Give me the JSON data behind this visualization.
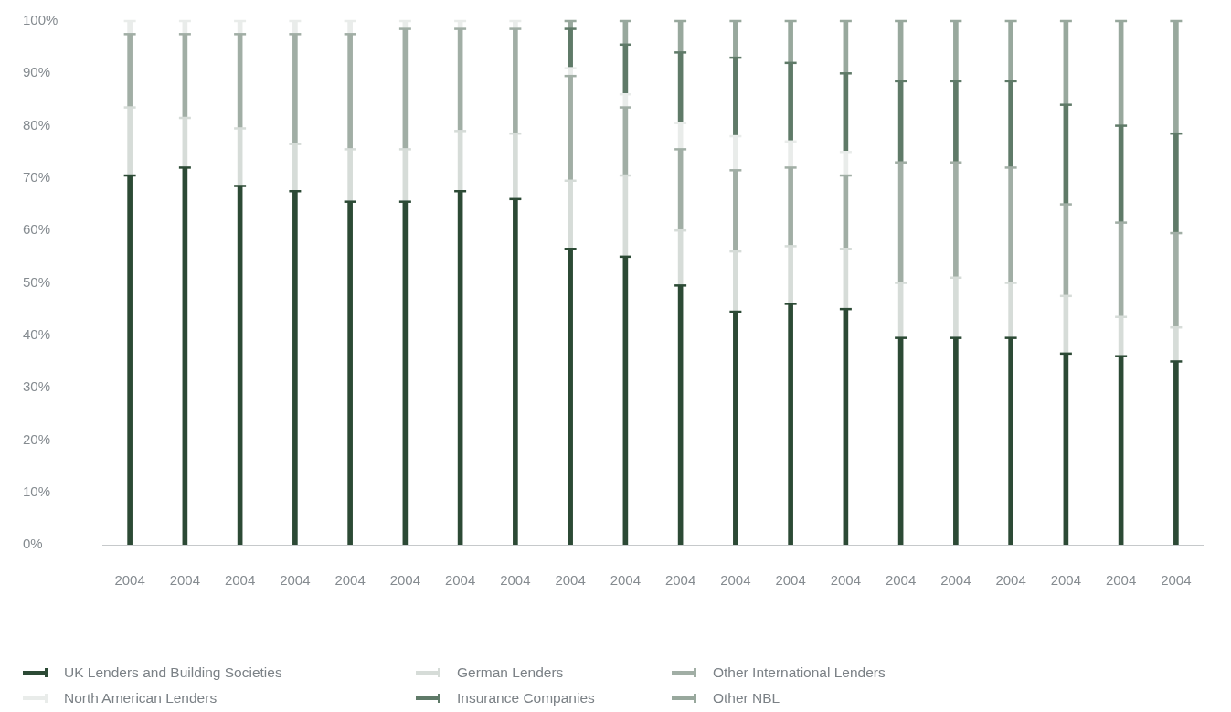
{
  "chart_data": {
    "type": "bar",
    "stacked": true,
    "legend": "bottom",
    "categories": [
      "2004",
      "2004",
      "2004",
      "2004",
      "2004",
      "2004",
      "2004",
      "2004",
      "2004",
      "2004",
      "2004",
      "2004",
      "2004",
      "2004",
      "2004",
      "2004",
      "2004",
      "2004",
      "2004",
      "2004"
    ],
    "ylim": [
      0,
      100
    ],
    "yticks": [
      {
        "value": 0,
        "label": "0%"
      },
      {
        "value": 10,
        "label": "10%"
      },
      {
        "value": 20,
        "label": "20%"
      },
      {
        "value": 30,
        "label": "30%"
      },
      {
        "value": 40,
        "label": "40%"
      },
      {
        "value": 50,
        "label": "50%"
      },
      {
        "value": 60,
        "label": "60%"
      },
      {
        "value": 70,
        "label": "70%"
      },
      {
        "value": 80,
        "label": "80%"
      },
      {
        "value": 90,
        "label": "90%"
      },
      {
        "value": 100,
        "label": "100%"
      }
    ],
    "series": [
      {
        "name": "UK Lenders and Building Societies",
        "color": "#2c4a35",
        "values": [
          70.5,
          72,
          68.5,
          67.5,
          65.5,
          65.5,
          67.5,
          66,
          56.5,
          55,
          49.5,
          44.5,
          46,
          45,
          39.5,
          39.5,
          39.5,
          36.5,
          36,
          35
        ]
      },
      {
        "name": "German Lenders",
        "color": "#d6dcd8",
        "values": [
          13,
          9.5,
          11,
          9,
          10,
          10,
          11.5,
          12.5,
          13,
          15.5,
          10.5,
          11.5,
          11,
          11.5,
          10.5,
          11.5,
          10.5,
          11,
          7.5,
          6.5
        ]
      },
      {
        "name": "Other International Lenders",
        "color": "#a1aea5",
        "values": [
          14,
          16,
          18,
          21,
          22,
          23,
          19.5,
          20,
          20,
          13,
          15.5,
          15.5,
          15,
          14,
          23,
          22,
          22,
          17.5,
          18,
          18
        ]
      },
      {
        "name": "North American Lenders",
        "color": "#e9eceA",
        "values": [
          2.5,
          2.5,
          2.5,
          2.5,
          2.5,
          1.5,
          1.5,
          1.5,
          1.5,
          2.5,
          5,
          6.5,
          5,
          4.5,
          0,
          0,
          0,
          0,
          0,
          0
        ]
      },
      {
        "name": "Insurance Companies",
        "color": "#5f7a68",
        "values": [
          0,
          0,
          0,
          0,
          0,
          0,
          0,
          0,
          7.5,
          9.5,
          13.5,
          15,
          15,
          15,
          15.5,
          15.5,
          16.5,
          19,
          18.5,
          19
        ]
      },
      {
        "name": "Other NBL",
        "color": "#98a89d",
        "values": [
          0,
          0,
          0,
          0,
          0,
          0,
          0,
          0,
          1.5,
          4.5,
          6,
          7,
          8,
          10,
          11.5,
          11.5,
          11.5,
          16,
          20,
          21.5
        ]
      }
    ]
  }
}
